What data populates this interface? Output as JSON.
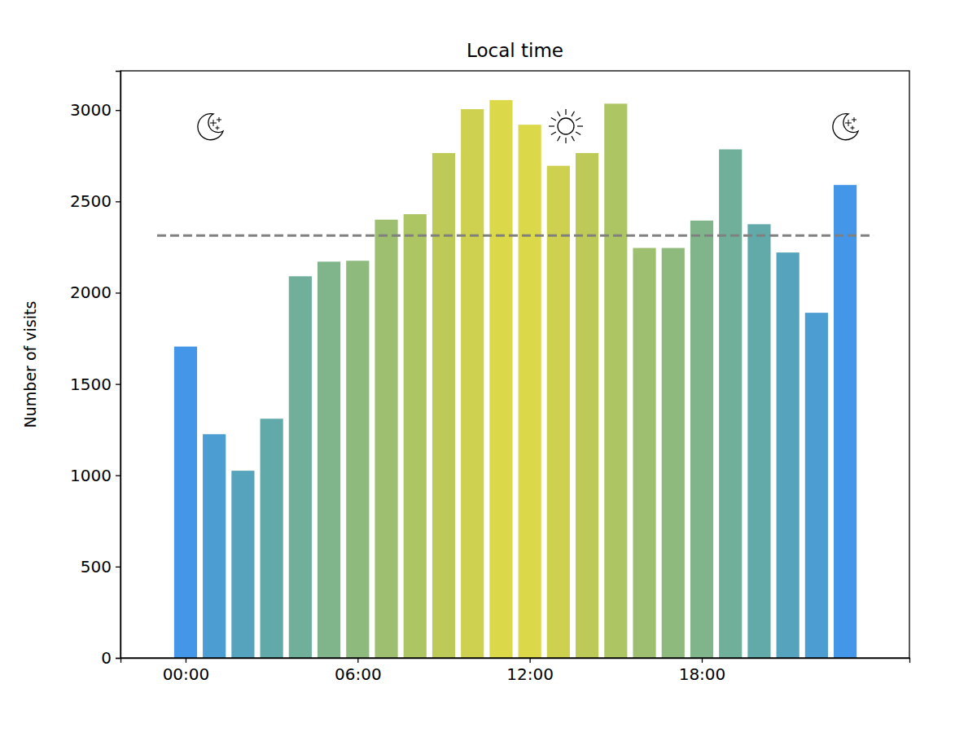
{
  "chart_data": {
    "type": "bar",
    "title": "Local time",
    "y_label": "Number of visits",
    "x": [
      0,
      1,
      2,
      3,
      4,
      5,
      6,
      7,
      8,
      9,
      10,
      11,
      12,
      13,
      14,
      15,
      16,
      17,
      18,
      19,
      20,
      21,
      22,
      23
    ],
    "values": [
      1705,
      1225,
      1025,
      1310,
      2090,
      2170,
      2175,
      2400,
      2430,
      2765,
      3005,
      3055,
      2920,
      2695,
      2765,
      3035,
      2245,
      2245,
      2395,
      2785,
      2375,
      2220,
      1890,
      2590
    ],
    "colors": [
      "#4497e8",
      "#4b9dd2",
      "#55a3bc",
      "#62aaaa",
      "#70b09b",
      "#80b58c",
      "#8fba7e",
      "#9fbf70",
      "#aec563",
      "#bdca58",
      "#cdd14f",
      "#dbd84a",
      "#dbd84a",
      "#cdd14f",
      "#bdca58",
      "#aec563",
      "#9fbf70",
      "#8fba7e",
      "#80b58c",
      "#70b09b",
      "#62aaaa",
      "#55a3bc",
      "#4b9dd2",
      "#4497e8"
    ],
    "mean": 2313,
    "xlim": [
      -2.27,
      25.24
    ],
    "xticks": [
      {
        "value": 0,
        "label": "00:00"
      },
      {
        "value": 6,
        "label": "06:00"
      },
      {
        "value": 12,
        "label": "12:00"
      },
      {
        "value": 18,
        "label": "18:00"
      }
    ],
    "ylim": [
      0,
      3215
    ],
    "yticks": [
      0,
      500,
      1000,
      1500,
      2000,
      2500,
      3000
    ],
    "grid": false
  }
}
